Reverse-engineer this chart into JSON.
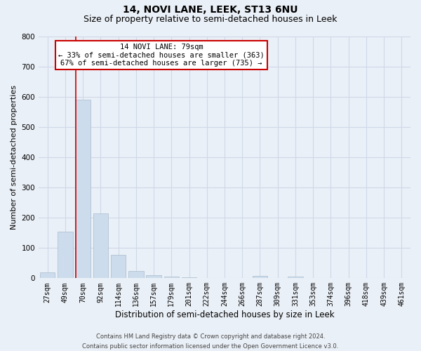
{
  "title": "14, NOVI LANE, LEEK, ST13 6NU",
  "subtitle": "Size of property relative to semi-detached houses in Leek",
  "xlabel": "Distribution of semi-detached houses by size in Leek",
  "ylabel": "Number of semi-detached properties",
  "categories": [
    "27sqm",
    "49sqm",
    "70sqm",
    "92sqm",
    "114sqm",
    "136sqm",
    "157sqm",
    "179sqm",
    "201sqm",
    "222sqm",
    "244sqm",
    "266sqm",
    "287sqm",
    "309sqm",
    "331sqm",
    "353sqm",
    "374sqm",
    "396sqm",
    "418sqm",
    "439sqm",
    "461sqm"
  ],
  "values": [
    20,
    155,
    590,
    215,
    78,
    25,
    10,
    5,
    2,
    0,
    0,
    0,
    8,
    0,
    5,
    0,
    0,
    0,
    0,
    0,
    0
  ],
  "bar_color": "#ccdcec",
  "bar_edge_color": "#aabbcc",
  "vline_x": 1.6,
  "vline_color": "#cc0000",
  "ylim": [
    0,
    800
  ],
  "yticks": [
    0,
    100,
    200,
    300,
    400,
    500,
    600,
    700,
    800
  ],
  "annotation_title": "14 NOVI LANE: 79sqm",
  "annotation_line1": "← 33% of semi-detached houses are smaller (363)",
  "annotation_line2": "67% of semi-detached houses are larger (735) →",
  "annotation_box_facecolor": "#ffffff",
  "annotation_box_edgecolor": "#cc0000",
  "footer_line1": "Contains HM Land Registry data © Crown copyright and database right 2024.",
  "footer_line2": "Contains public sector information licensed under the Open Government Licence v3.0.",
  "background_color": "#eaf0f7",
  "plot_bg_color": "#eaf0f7",
  "grid_color": "#d0d8e8",
  "title_fontsize": 10,
  "subtitle_fontsize": 9,
  "ylabel_fontsize": 8,
  "xlabel_fontsize": 8.5,
  "tick_fontsize": 7,
  "footer_fontsize": 6,
  "annot_fontsize": 7.5
}
